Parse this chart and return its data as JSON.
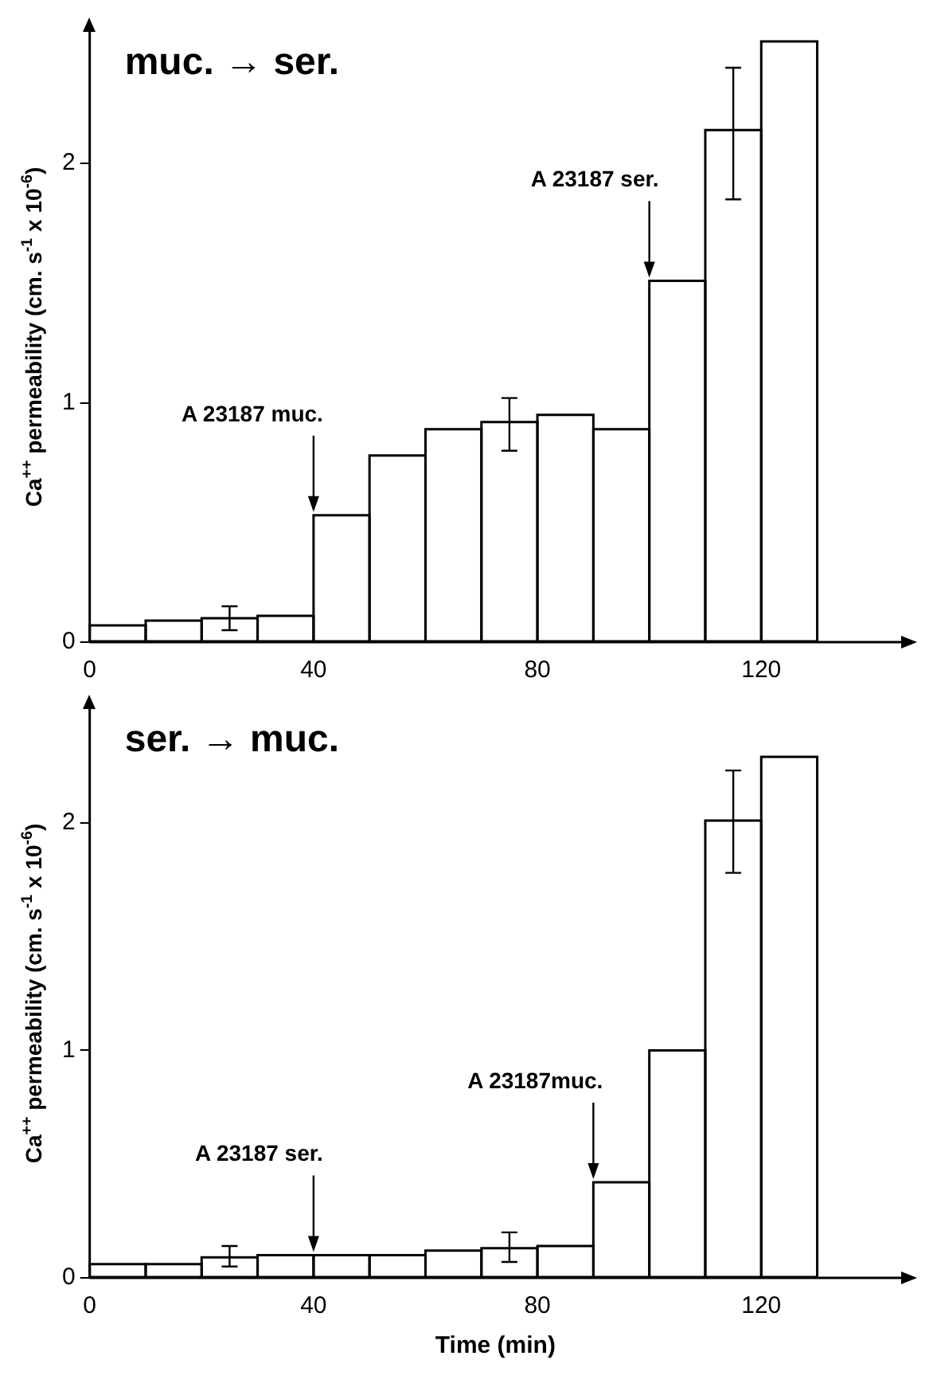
{
  "chart_data": [
    {
      "type": "histogram",
      "title": "muc. → ser.",
      "ylabel": "Ca$^{++}$ permeability (cm. s$^{-1}$ x 10$^{-6}$)",
      "color": "#000000",
      "bins": [
        0,
        10,
        20,
        30,
        40,
        50,
        60,
        70,
        80,
        90,
        100,
        110,
        120,
        130
      ],
      "values": [
        0.07,
        0.09,
        0.1,
        0.11,
        0.53,
        0.78,
        0.89,
        0.92,
        0.95,
        0.89,
        1.51,
        2.14,
        2.51
      ],
      "errors": [
        null,
        null,
        [
          0.05,
          0.15
        ],
        null,
        null,
        null,
        null,
        [
          0.8,
          1.02
        ],
        null,
        null,
        null,
        [
          1.85,
          2.4
        ],
        null
      ],
      "annotations": [
        {
          "text": "A 23187 muc.",
          "x": 40,
          "y": 0.53
        },
        {
          "text": "A 23187 ser.",
          "x": 100,
          "y": 1.51
        }
      ],
      "xlim": [
        0,
        145
      ],
      "xticks": [
        0,
        40,
        80,
        120
      ],
      "ylim": [
        0,
        2.55
      ],
      "yticks": [
        0,
        1,
        2
      ]
    },
    {
      "type": "histogram",
      "title": "ser. → muc.",
      "ylabel": "Ca$^{++}$ permeability (cm. s$^{-1}$ x 10$^{-6}$)",
      "xlabel": "Time (min)",
      "color": "#000000",
      "bins": [
        0,
        10,
        20,
        30,
        40,
        50,
        60,
        70,
        80,
        90,
        100,
        110,
        120,
        130
      ],
      "values": [
        0.06,
        0.06,
        0.09,
        0.1,
        0.1,
        0.1,
        0.12,
        0.13,
        0.14,
        0.42,
        1.0,
        2.01,
        2.29
      ],
      "errors": [
        null,
        null,
        [
          0.05,
          0.14
        ],
        null,
        null,
        null,
        null,
        [
          0.07,
          0.2
        ],
        null,
        null,
        null,
        [
          1.78,
          2.23
        ],
        null
      ],
      "annotations": [
        {
          "text": "A 23187 ser.",
          "x": 40,
          "y": 0.1
        },
        {
          "text": "A 23187muc.",
          "x": 90,
          "y": 0.42
        }
      ],
      "xlim": [
        0,
        145
      ],
      "xticks": [
        0,
        40,
        80,
        120
      ],
      "ylim": [
        0,
        2.5
      ],
      "yticks": [
        0,
        1,
        2
      ]
    }
  ]
}
